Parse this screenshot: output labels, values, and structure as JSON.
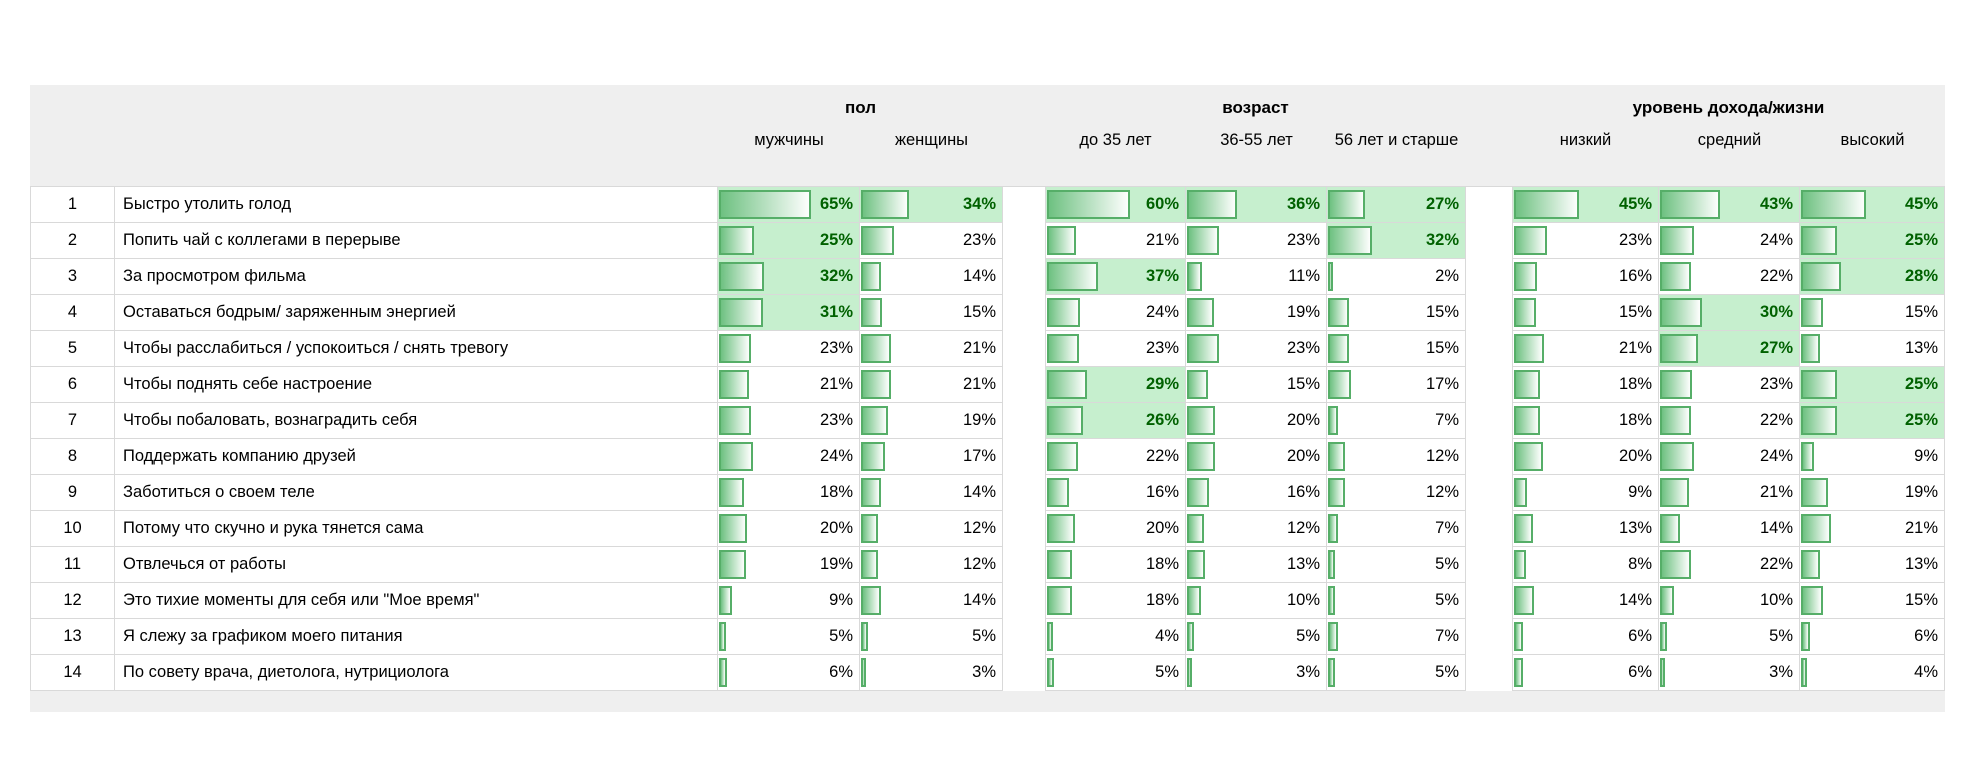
{
  "chart_data": {
    "type": "table",
    "value_format": "percent",
    "groups": [
      {
        "label": "пол",
        "columns": [
          "мужчины",
          "женщины"
        ]
      },
      {
        "label": "возраст",
        "columns": [
          "до 35 лет",
          "36-55 лет",
          "56 лет и старше"
        ]
      },
      {
        "label": "уровень дохода/жизни",
        "columns": [
          "низкий",
          "средний",
          "высокий"
        ]
      }
    ],
    "rows": [
      {
        "num": "1",
        "label": "Быстро утолить голод",
        "values": [
          65,
          34,
          60,
          36,
          27,
          45,
          43,
          45
        ],
        "highlight": [
          1,
          1,
          1,
          1,
          1,
          1,
          1,
          1
        ]
      },
      {
        "num": "2",
        "label": "Попить чай с коллегами в перерыве",
        "values": [
          25,
          23,
          21,
          23,
          32,
          23,
          24,
          25
        ],
        "highlight": [
          1,
          0,
          0,
          0,
          1,
          0,
          0,
          1
        ]
      },
      {
        "num": "3",
        "label": "За просмотром фильма",
        "values": [
          32,
          14,
          37,
          11,
          2,
          16,
          22,
          28
        ],
        "highlight": [
          1,
          0,
          1,
          0,
          0,
          0,
          0,
          1
        ]
      },
      {
        "num": "4",
        "label": "Оставаться бодрым/ заряженным энергией",
        "values": [
          31,
          15,
          24,
          19,
          15,
          15,
          30,
          15
        ],
        "highlight": [
          1,
          0,
          0,
          0,
          0,
          0,
          1,
          0
        ]
      },
      {
        "num": "5",
        "label": "Чтобы расслабиться / успокоиться / снять тревогу",
        "values": [
          23,
          21,
          23,
          23,
          15,
          21,
          27,
          13
        ],
        "highlight": [
          0,
          0,
          0,
          0,
          0,
          0,
          1,
          0
        ]
      },
      {
        "num": "6",
        "label": "Чтобы поднять себе настроение",
        "values": [
          21,
          21,
          29,
          15,
          17,
          18,
          23,
          25
        ],
        "highlight": [
          0,
          0,
          1,
          0,
          0,
          0,
          0,
          1
        ]
      },
      {
        "num": "7",
        "label": "Чтобы побаловать, вознаградить себя",
        "values": [
          23,
          19,
          26,
          20,
          7,
          18,
          22,
          25
        ],
        "highlight": [
          0,
          0,
          1,
          0,
          0,
          0,
          0,
          1
        ]
      },
      {
        "num": "8",
        "label": "Поддержать компанию друзей",
        "values": [
          24,
          17,
          22,
          20,
          12,
          20,
          24,
          9
        ],
        "highlight": [
          0,
          0,
          0,
          0,
          0,
          0,
          0,
          0
        ]
      },
      {
        "num": "9",
        "label": "Заботиться о своем теле",
        "values": [
          18,
          14,
          16,
          16,
          12,
          9,
          21,
          19
        ],
        "highlight": [
          0,
          0,
          0,
          0,
          0,
          0,
          0,
          0
        ]
      },
      {
        "num": "10",
        "label": "Потому что скучно и рука тянется сама",
        "values": [
          20,
          12,
          20,
          12,
          7,
          13,
          14,
          21
        ],
        "highlight": [
          0,
          0,
          0,
          0,
          0,
          0,
          0,
          0
        ]
      },
      {
        "num": "11",
        "label": "Отвлечься от работы",
        "values": [
          19,
          12,
          18,
          13,
          5,
          8,
          22,
          13
        ],
        "highlight": [
          0,
          0,
          0,
          0,
          0,
          0,
          0,
          0
        ]
      },
      {
        "num": "12",
        "label": "Это тихие моменты для себя или \"Мое время\"",
        "values": [
          9,
          14,
          18,
          10,
          5,
          14,
          10,
          15
        ],
        "highlight": [
          0,
          0,
          0,
          0,
          0,
          0,
          0,
          0
        ]
      },
      {
        "num": "13",
        "label": "Я слежу за графиком моего питания",
        "values": [
          5,
          5,
          4,
          5,
          7,
          6,
          5,
          6
        ],
        "highlight": [
          0,
          0,
          0,
          0,
          0,
          0,
          0,
          0
        ]
      },
      {
        "num": "14",
        "label": "По совету врача, диетолога, нутрициолога",
        "values": [
          6,
          3,
          5,
          3,
          5,
          6,
          3,
          4
        ],
        "highlight": [
          0,
          0,
          0,
          0,
          0,
          0,
          0,
          0
        ]
      }
    ]
  },
  "styles": {
    "header_bg": "#efefef",
    "border_color": "#d9d9d9",
    "highlight_bg": "#c6efce",
    "highlight_text": "#006100",
    "bar_border": "#56ae68",
    "bar_fill": "#6ec181"
  }
}
